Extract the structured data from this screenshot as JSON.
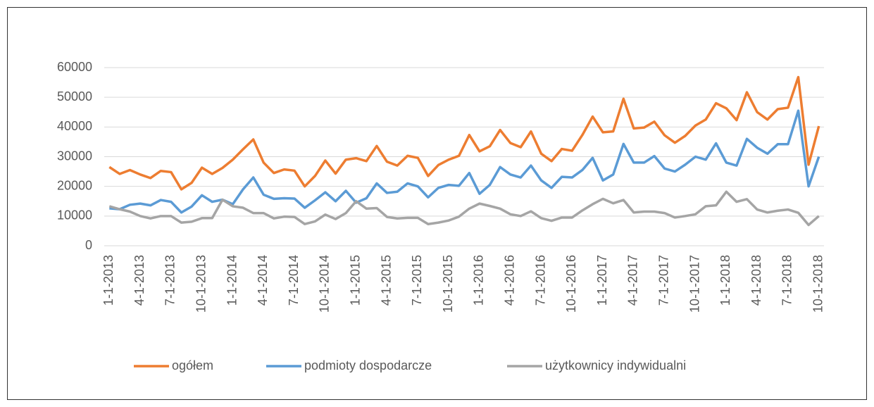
{
  "chart_data": {
    "type": "line",
    "categories": [
      "1-1-2013",
      null,
      null,
      "4-1-2013",
      null,
      null,
      "7-1-2013",
      null,
      null,
      "10-1-2013",
      null,
      null,
      "1-1-2014",
      null,
      null,
      "4-1-2014",
      null,
      null,
      "7-1-2014",
      null,
      null,
      "10-1-2014",
      null,
      null,
      "1-1-2015",
      null,
      null,
      "4-1-2015",
      null,
      null,
      "7-1-2015",
      null,
      null,
      "10-1-2015",
      null,
      null,
      "1-1-2016",
      null,
      null,
      "4-1-2016",
      null,
      null,
      "7-1-2016",
      null,
      null,
      "10-1-2016",
      null,
      null,
      "1-1-2017",
      null,
      null,
      "4-1-2017",
      null,
      null,
      "7-1-2017",
      null,
      null,
      "10-1-2017",
      null,
      null,
      "1-1-2018",
      null,
      null,
      "4-1-2018",
      null,
      null,
      "7-1-2018",
      null,
      null,
      "10-1-2018"
    ],
    "series": [
      {
        "name": "ogółem",
        "color": "#ed7d31",
        "values": [
          26500,
          24200,
          25500,
          24000,
          22800,
          25200,
          24800,
          19000,
          21200,
          26300,
          24200,
          26200,
          29000,
          32500,
          35800,
          28000,
          24500,
          25700,
          25300,
          20000,
          23500,
          28700,
          24300,
          29000,
          29500,
          28500,
          33600,
          28300,
          27000,
          30300,
          29600,
          23500,
          27200,
          29000,
          30300,
          37300,
          31800,
          33500,
          39000,
          34600,
          33200,
          38500,
          31000,
          28500,
          32600,
          32000,
          37300,
          43500,
          38200,
          38500,
          49500,
          39500,
          39800,
          41800,
          37200,
          34700,
          37000,
          40500,
          42500,
          48000,
          46300,
          42300,
          51700,
          45000,
          42500,
          46000,
          46500,
          56800,
          27300,
          40300
        ]
      },
      {
        "name": "podmioty dospodarcze",
        "color": "#5b9bd5",
        "values": [
          12600,
          12300,
          13800,
          14200,
          13600,
          15400,
          14800,
          11200,
          13200,
          17000,
          14800,
          15500,
          14000,
          19000,
          23000,
          17200,
          15800,
          16000,
          15900,
          12800,
          15300,
          18000,
          15000,
          18500,
          14500,
          16000,
          21000,
          17800,
          18200,
          21000,
          20000,
          16300,
          19500,
          20500,
          20200,
          24500,
          17500,
          20500,
          26500,
          24000,
          23000,
          27000,
          22000,
          19500,
          23200,
          23000,
          25500,
          29600,
          22000,
          24000,
          34300,
          28000,
          28000,
          30200,
          26000,
          25000,
          27300,
          30000,
          29000,
          34500,
          28000,
          27000,
          36000,
          33000,
          31000,
          34200,
          34200,
          45500,
          20000,
          30000
        ]
      },
      {
        "name": "użytkownicy indywidualni",
        "color": "#a5a5a5",
        "values": [
          13300,
          12300,
          11500,
          10000,
          9200,
          10000,
          10000,
          7800,
          8100,
          9300,
          9300,
          15500,
          13300,
          12800,
          11000,
          11000,
          9200,
          9800,
          9700,
          7300,
          8200,
          10500,
          9000,
          11000,
          15000,
          12500,
          12700,
          9700,
          9200,
          9400,
          9400,
          7300,
          7800,
          8500,
          9800,
          12500,
          14200,
          13400,
          12500,
          10600,
          10000,
          11600,
          9300,
          8400,
          9500,
          9500,
          11900,
          14000,
          15800,
          14300,
          15400,
          11200,
          11500,
          11500,
          11000,
          9500,
          10000,
          10600,
          13300,
          13600,
          18200,
          14800,
          15700,
          12200,
          11200,
          11800,
          12200,
          11100,
          7000,
          10000
        ]
      }
    ],
    "ylim": [
      0,
      60000
    ],
    "yticks": [
      0,
      10000,
      20000,
      30000,
      40000,
      50000,
      60000
    ],
    "grid": true,
    "legend": "bottom"
  }
}
